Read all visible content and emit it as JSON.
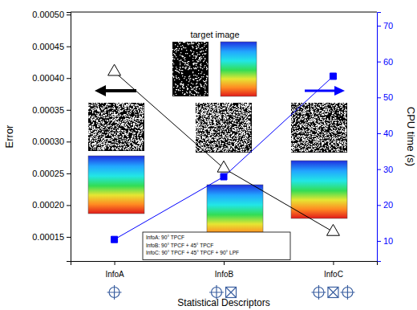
{
  "chart_data": {
    "type": "line",
    "x_label": "Statistical Descriptors",
    "categories": [
      "InfoA",
      "InfoB",
      "InfoC"
    ],
    "series": [
      {
        "name": "Error",
        "color": "#000000",
        "marker": "triangle",
        "values": [
          0.00041,
          0.000258,
          0.000158
        ]
      },
      {
        "name": "CPU time (s)",
        "axis": "y2",
        "color": "#0000ff",
        "marker": "square",
        "values": [
          10.4,
          27.9,
          55.9
        ]
      }
    ],
    "ylim": [
      0.000112,
      0.000504
    ],
    "yticks": [
      {
        "value": 0.00015,
        "label": "0.00015"
      },
      {
        "value": 0.0002,
        "label": "0.00020"
      },
      {
        "value": 0.00025,
        "label": "0.00025"
      },
      {
        "value": 0.0003,
        "label": "0.00030"
      },
      {
        "value": 0.00035,
        "label": "0.00035"
      },
      {
        "value": 0.0004,
        "label": "0.00040"
      },
      {
        "value": 0.00045,
        "label": "0.00045"
      },
      {
        "value": 0.0005,
        "label": "0.00050"
      }
    ],
    "y2lim": [
      4.4,
      73.8
    ],
    "y2ticks": [
      10,
      20,
      30,
      40,
      50,
      60,
      70
    ],
    "grid": false,
    "annotations": [
      "target image",
      "InfoA: 90° TPCF",
      "InfoB: 90° TPCF + 45° TPCF",
      "InfoC: 90° TPCF + 45° TPCF + 90° LPF"
    ]
  }
}
